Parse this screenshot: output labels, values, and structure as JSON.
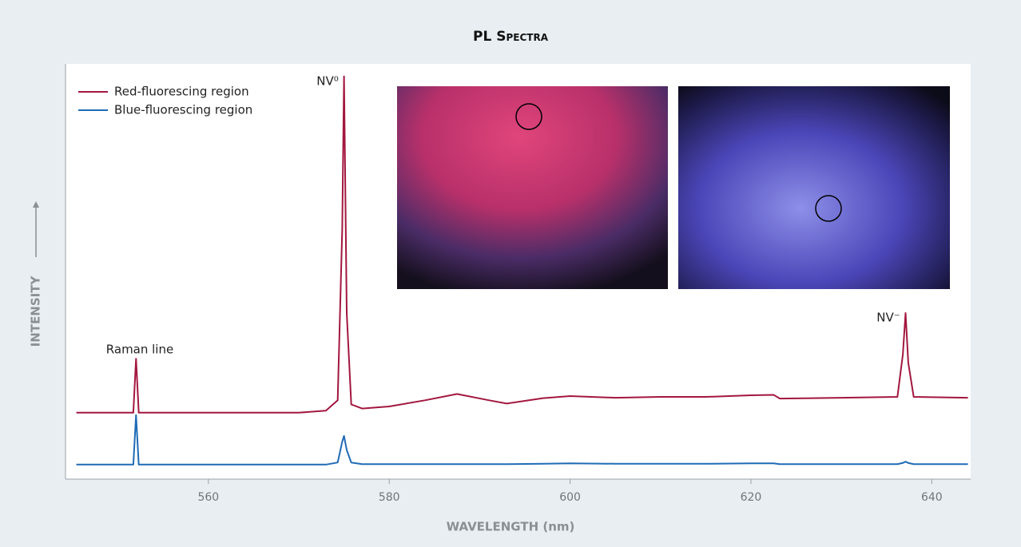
{
  "chart_data": {
    "type": "line",
    "title": "PL Spectra",
    "x_label": "WAVELENGTH (nm)",
    "y_label": "INTENSITY",
    "x": [
      545.4,
      551.7,
      552.0,
      552.3,
      560,
      570,
      573,
      574.3,
      574.8,
      575.0,
      575.3,
      575.8,
      577,
      580,
      584,
      587.5,
      591,
      593,
      597,
      600,
      605,
      610,
      615,
      620,
      622.5,
      623.2,
      630,
      636.2,
      636.8,
      637.1,
      637.4,
      638,
      644
    ],
    "series": [
      {
        "name": "Red-fluorescing region",
        "color": "#a3173f",
        "values": [
          16,
          16,
          29,
          16,
          16,
          16,
          16.5,
          19,
          60,
          97,
          40,
          18,
          17,
          17.5,
          19,
          20.5,
          19,
          18.2,
          19.5,
          20,
          19.6,
          19.8,
          19.8,
          20.2,
          20.3,
          19.4,
          19.6,
          19.8,
          30,
          40,
          28,
          19.8,
          19.6
        ]
      },
      {
        "name": "Blue-fluorescing region",
        "color": "#1f6bb5",
        "values": [
          3.5,
          3.5,
          15.4,
          3.5,
          3.5,
          3.5,
          3.5,
          4,
          9,
          10.4,
          7,
          4,
          3.6,
          3.6,
          3.6,
          3.6,
          3.6,
          3.6,
          3.7,
          3.8,
          3.7,
          3.7,
          3.7,
          3.8,
          3.8,
          3.6,
          3.6,
          3.6,
          3.9,
          4.2,
          3.9,
          3.6,
          3.6
        ]
      }
    ],
    "annotations": [
      "Raman line",
      "NV⁰",
      "NV⁻"
    ],
    "xlim": [
      544.2,
      644.3
    ],
    "xticks": [
      560,
      580,
      600,
      620,
      640
    ],
    "ylim": [
      0,
      100
    ]
  }
}
